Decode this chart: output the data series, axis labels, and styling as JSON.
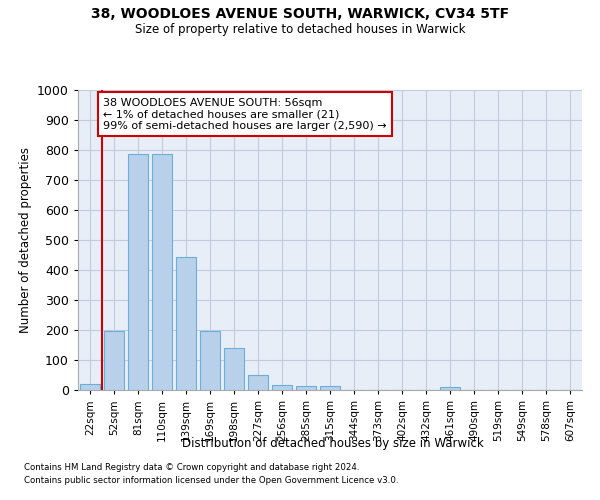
{
  "title_line1": "38, WOODLOES AVENUE SOUTH, WARWICK, CV34 5TF",
  "title_line2": "Size of property relative to detached houses in Warwick",
  "xlabel": "Distribution of detached houses by size in Warwick",
  "ylabel": "Number of detached properties",
  "bar_labels": [
    "22sqm",
    "52sqm",
    "81sqm",
    "110sqm",
    "139sqm",
    "169sqm",
    "198sqm",
    "227sqm",
    "256sqm",
    "285sqm",
    "315sqm",
    "344sqm",
    "373sqm",
    "402sqm",
    "432sqm",
    "461sqm",
    "490sqm",
    "519sqm",
    "549sqm",
    "578sqm",
    "607sqm"
  ],
  "bar_values": [
    20,
    197,
    787,
    787,
    443,
    197,
    140,
    50,
    16,
    13,
    13,
    0,
    0,
    0,
    0,
    10,
    0,
    0,
    0,
    0,
    0
  ],
  "bar_color": "#b8d0ea",
  "bar_edge_color": "#6baed6",
  "vline_pos": 0.5,
  "vline_color": "#cc0000",
  "annotation_text": "38 WOODLOES AVENUE SOUTH: 56sqm\n← 1% of detached houses are smaller (21)\n99% of semi-detached houses are larger (2,590) →",
  "annotation_box_edgecolor": "#cc0000",
  "ylim": [
    0,
    1000
  ],
  "yticks": [
    0,
    100,
    200,
    300,
    400,
    500,
    600,
    700,
    800,
    900,
    1000
  ],
  "footer_line1": "Contains HM Land Registry data © Crown copyright and database right 2024.",
  "footer_line2": "Contains public sector information licensed under the Open Government Licence v3.0.",
  "plot_bg_color": "#e8eef8",
  "grid_color": "#c0cae0"
}
